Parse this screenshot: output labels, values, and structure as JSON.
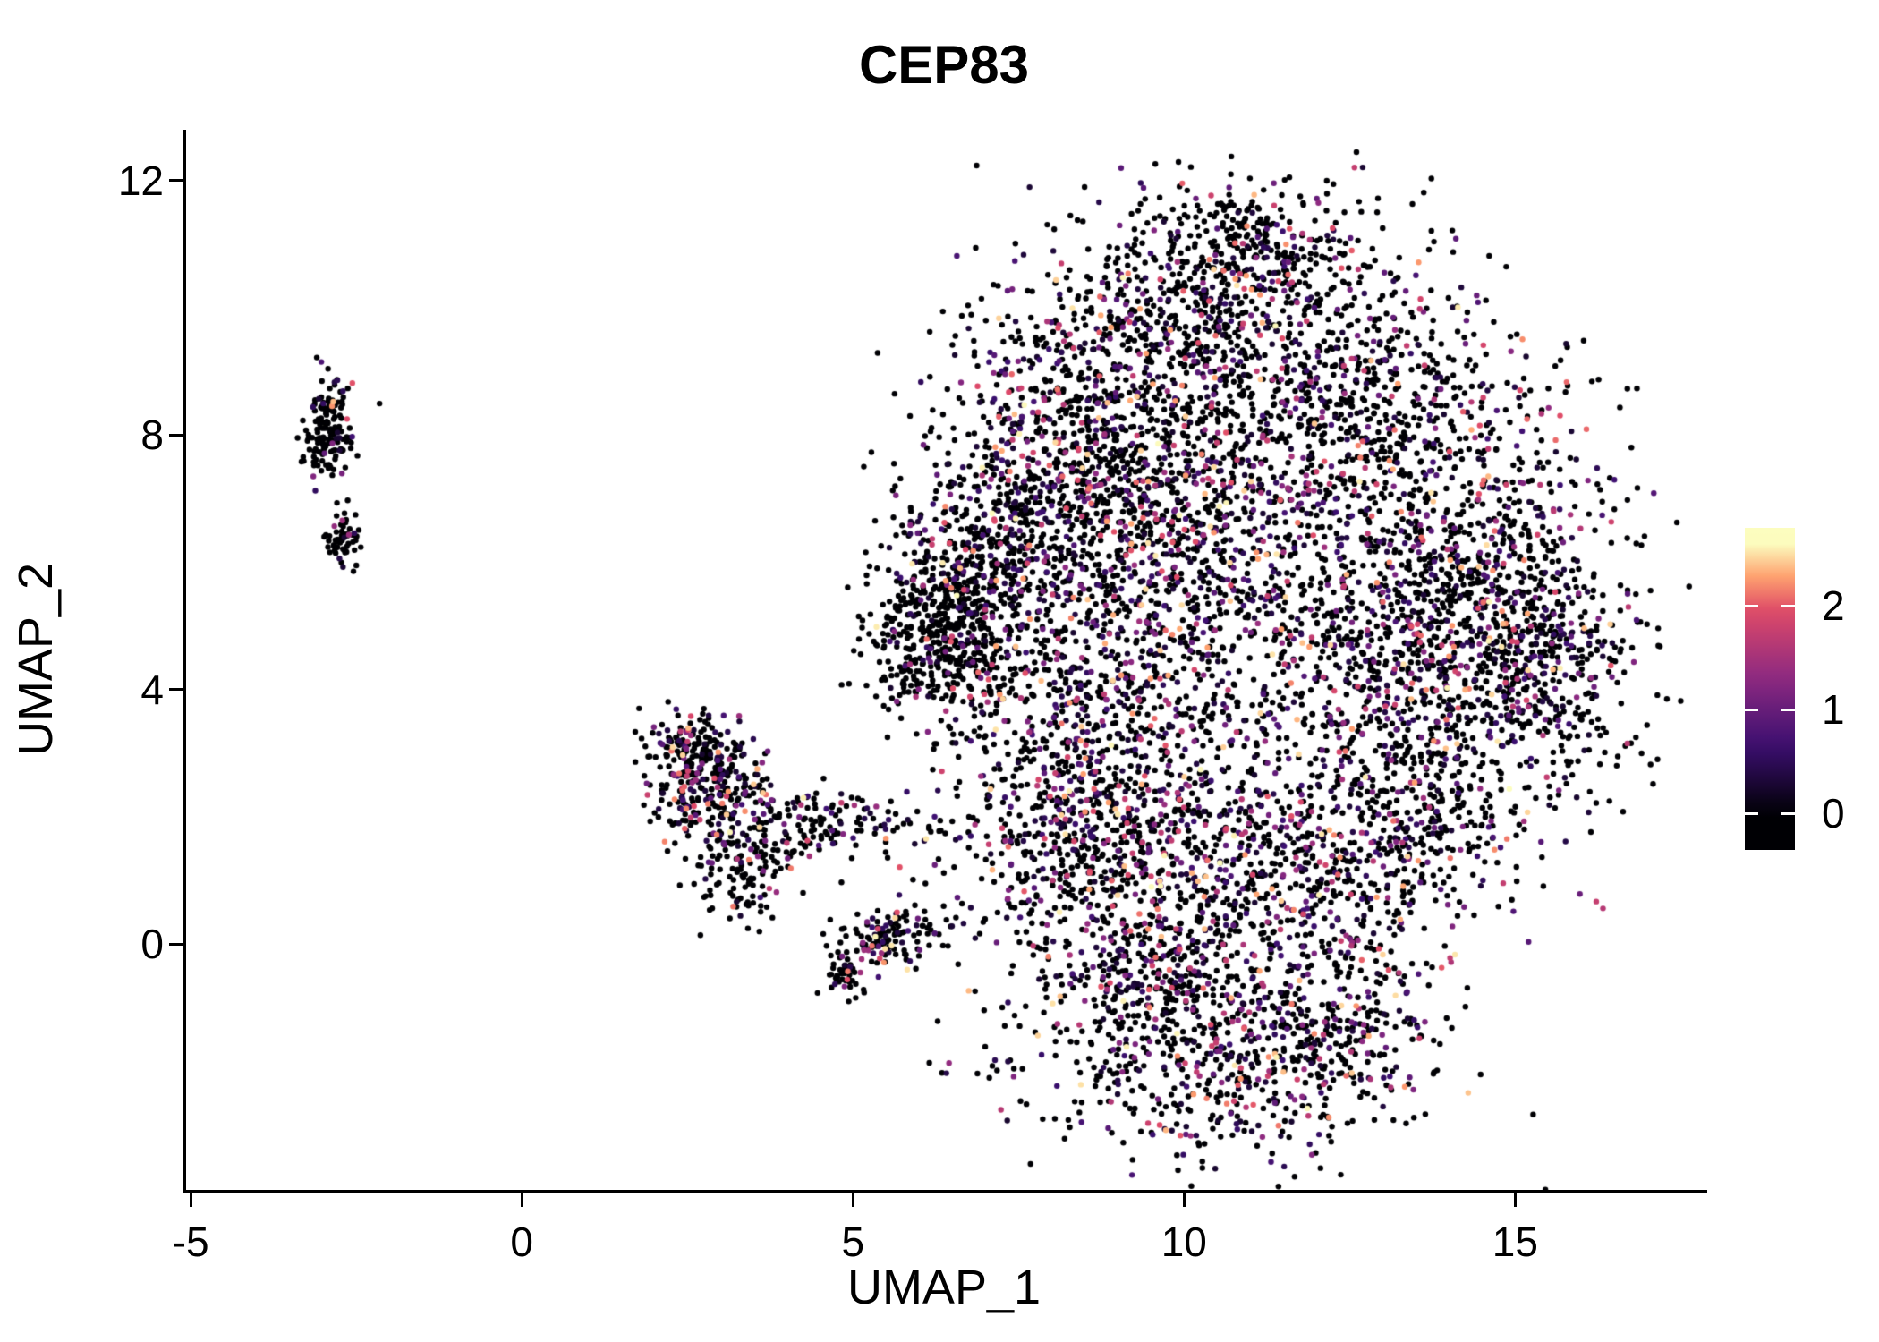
{
  "chart_data": {
    "type": "scatter",
    "title": "CEP83",
    "xlabel": "UMAP_1",
    "ylabel": "UMAP_2",
    "x_ticks": [
      -5,
      0,
      5,
      10,
      15
    ],
    "y_ticks": [
      0,
      4,
      8,
      12
    ],
    "xlim": [
      -5.07,
      17.9
    ],
    "ylim": [
      -3.86,
      12.8
    ],
    "grid": false,
    "legend_position": "right",
    "point_radius_px": 3.2,
    "seed": 42,
    "colorbar": {
      "ticks": [
        0,
        1,
        2
      ],
      "range": [
        -0.35,
        2.75
      ],
      "value_max": 2.6,
      "colormap": "magma",
      "anchors": [
        {
          "t": 0.0,
          "color": "#000004"
        },
        {
          "t": 0.25,
          "color": "#3B0F70"
        },
        {
          "t": 0.5,
          "color": "#8C2981"
        },
        {
          "t": 0.75,
          "color": "#DE4968"
        },
        {
          "t": 0.875,
          "color": "#FE9F6D"
        },
        {
          "t": 1.0,
          "color": "#FCFDBF"
        }
      ]
    },
    "clusters": [
      {
        "name": "left-small-upper",
        "cx": -2.92,
        "cy": 8.05,
        "sx": 0.18,
        "sy": 0.42,
        "n": 160,
        "colored_frac": 0.12
      },
      {
        "name": "left-small-lower",
        "cx": -2.7,
        "cy": 6.45,
        "sx": 0.12,
        "sy": 0.28,
        "n": 60,
        "colored_frac": 0.15
      },
      {
        "name": "mid-left-main",
        "cx": 2.75,
        "cy": 2.6,
        "sx": 0.45,
        "sy": 0.45,
        "n": 260,
        "colored_frac": 0.3
      },
      {
        "name": "mid-left-tail",
        "cx": 3.3,
        "cy": 1.45,
        "sx": 0.45,
        "sy": 0.55,
        "n": 180,
        "colored_frac": 0.3
      },
      {
        "name": "mid-left-arm",
        "cx": 4.6,
        "cy": 1.95,
        "sx": 0.75,
        "sy": 0.28,
        "n": 130,
        "colored_frac": 0.25
      },
      {
        "name": "mid-left-top",
        "cx": 2.55,
        "cy": 3.1,
        "sx": 0.3,
        "sy": 0.25,
        "n": 80,
        "colored_frac": 0.2
      },
      {
        "name": "small-zero-blob",
        "cx": 5.6,
        "cy": 0.05,
        "sx": 0.45,
        "sy": 0.22,
        "n": 130,
        "colored_frac": 0.3
      },
      {
        "name": "small-below-blob",
        "cx": 4.85,
        "cy": -0.5,
        "sx": 0.16,
        "sy": 0.16,
        "n": 45,
        "colored_frac": 0.3
      },
      {
        "name": "main-left-dense",
        "cx": 6.35,
        "cy": 4.9,
        "sx": 0.55,
        "sy": 0.75,
        "n": 550,
        "colored_frac": 0.12
      },
      {
        "name": "main-left-upper",
        "cx": 7.1,
        "cy": 6.2,
        "sx": 0.6,
        "sy": 0.7,
        "n": 300,
        "colored_frac": 0.25
      },
      {
        "name": "main-topleft",
        "cx": 8.3,
        "cy": 8.0,
        "sx": 1.0,
        "sy": 1.2,
        "n": 650,
        "colored_frac": 0.35
      },
      {
        "name": "main-top",
        "cx": 10.6,
        "cy": 9.8,
        "sx": 1.3,
        "sy": 1.0,
        "n": 700,
        "colored_frac": 0.3
      },
      {
        "name": "main-topright",
        "cx": 12.8,
        "cy": 8.6,
        "sx": 1.2,
        "sy": 1.1,
        "n": 600,
        "colored_frac": 0.3
      },
      {
        "name": "main-right",
        "cx": 14.6,
        "cy": 5.6,
        "sx": 1.1,
        "sy": 1.4,
        "n": 650,
        "colored_frac": 0.3
      },
      {
        "name": "main-right-edge",
        "cx": 15.6,
        "cy": 4.3,
        "sx": 0.7,
        "sy": 1.0,
        "n": 250,
        "colored_frac": 0.25
      },
      {
        "name": "main-center",
        "cx": 10.6,
        "cy": 5.4,
        "sx": 1.6,
        "sy": 1.6,
        "n": 800,
        "colored_frac": 0.4
      },
      {
        "name": "main-centerleft",
        "cx": 8.6,
        "cy": 4.0,
        "sx": 1.0,
        "sy": 1.3,
        "n": 500,
        "colored_frac": 0.35
      },
      {
        "name": "main-upper-mid",
        "cx": 9.6,
        "cy": 7.0,
        "sx": 1.2,
        "sy": 1.0,
        "n": 450,
        "colored_frac": 0.35
      },
      {
        "name": "main-low-left",
        "cx": 8.3,
        "cy": 1.6,
        "sx": 1.0,
        "sy": 1.1,
        "n": 500,
        "colored_frac": 0.35
      },
      {
        "name": "main-low-mid",
        "cx": 10.8,
        "cy": 1.1,
        "sx": 1.6,
        "sy": 0.9,
        "n": 700,
        "colored_frac": 0.4
      },
      {
        "name": "main-low-right",
        "cx": 13.3,
        "cy": 2.2,
        "sx": 1.1,
        "sy": 1.1,
        "n": 500,
        "colored_frac": 0.3
      },
      {
        "name": "main-right-mid",
        "cx": 13.6,
        "cy": 4.8,
        "sx": 1.0,
        "sy": 1.2,
        "n": 450,
        "colored_frac": 0.3
      },
      {
        "name": "bottom-lobe",
        "cx": 10.6,
        "cy": -1.9,
        "sx": 1.5,
        "sy": 0.75,
        "n": 550,
        "colored_frac": 0.35
      },
      {
        "name": "bottom-neck",
        "cx": 9.6,
        "cy": -0.4,
        "sx": 0.7,
        "sy": 0.5,
        "n": 220,
        "colored_frac": 0.35
      },
      {
        "name": "bottom-right-edge",
        "cx": 12.3,
        "cy": -1.2,
        "sx": 0.8,
        "sy": 0.6,
        "n": 200,
        "colored_frac": 0.3
      },
      {
        "name": "top-bump",
        "cx": 10.9,
        "cy": 11.2,
        "sx": 0.9,
        "sy": 0.45,
        "n": 180,
        "colored_frac": 0.2
      }
    ]
  }
}
